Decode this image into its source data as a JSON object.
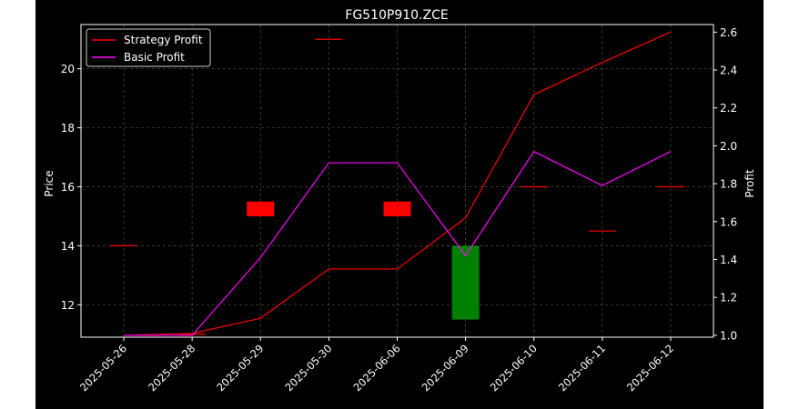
{
  "chart_data": {
    "type": "candlestick-line",
    "title": "FG510P910.ZCE",
    "ylabel_left": "Price",
    "ylabel_right": "Profit",
    "categories": [
      "2025-05-26",
      "2025-05-28",
      "2025-05-29",
      "2025-05-30",
      "2025-06-06",
      "2025-06-09",
      "2025-06-10",
      "2025-06-11",
      "2025-06-12"
    ],
    "left_axis": {
      "ylim": [
        10.9,
        21.5
      ],
      "ticks": [
        12,
        14,
        16,
        18,
        20
      ]
    },
    "right_axis": {
      "ylim": [
        0.99,
        2.64
      ],
      "ticks": [
        1.0,
        1.2,
        1.4,
        1.6,
        1.8,
        2.0,
        2.2,
        2.4,
        2.6
      ]
    },
    "candles": [
      {
        "date": "2025-05-26",
        "open": 14.0,
        "close": 14.0
      },
      {
        "date": "2025-05-28",
        "open": 11.0,
        "close": 11.0
      },
      {
        "date": "2025-05-29",
        "open": 15.5,
        "close": 15.0
      },
      {
        "date": "2025-05-30",
        "open": 21.0,
        "close": 21.0
      },
      {
        "date": "2025-06-06",
        "open": 15.5,
        "close": 15.0
      },
      {
        "date": "2025-06-09",
        "open": 11.5,
        "close": 14.0
      },
      {
        "date": "2025-06-10",
        "open": 16.0,
        "close": 16.0
      },
      {
        "date": "2025-06-11",
        "open": 14.5,
        "close": 14.5
      },
      {
        "date": "2025-06-12",
        "open": 16.0,
        "close": 16.0
      }
    ],
    "series": [
      {
        "name": "Strategy Profit",
        "color": "#ff0000",
        "values": [
          1.0,
          1.01,
          1.09,
          1.35,
          1.35,
          1.62,
          2.27,
          2.44,
          2.6
        ]
      },
      {
        "name": "Basic Profit",
        "color": "#ff00ff",
        "values": [
          1.0,
          1.0,
          1.41,
          1.91,
          1.91,
          1.42,
          1.97,
          1.79,
          1.97
        ]
      }
    ],
    "up_color": "#008000",
    "down_color": "#ff0000",
    "grid": true,
    "legend_position": "top-left"
  }
}
